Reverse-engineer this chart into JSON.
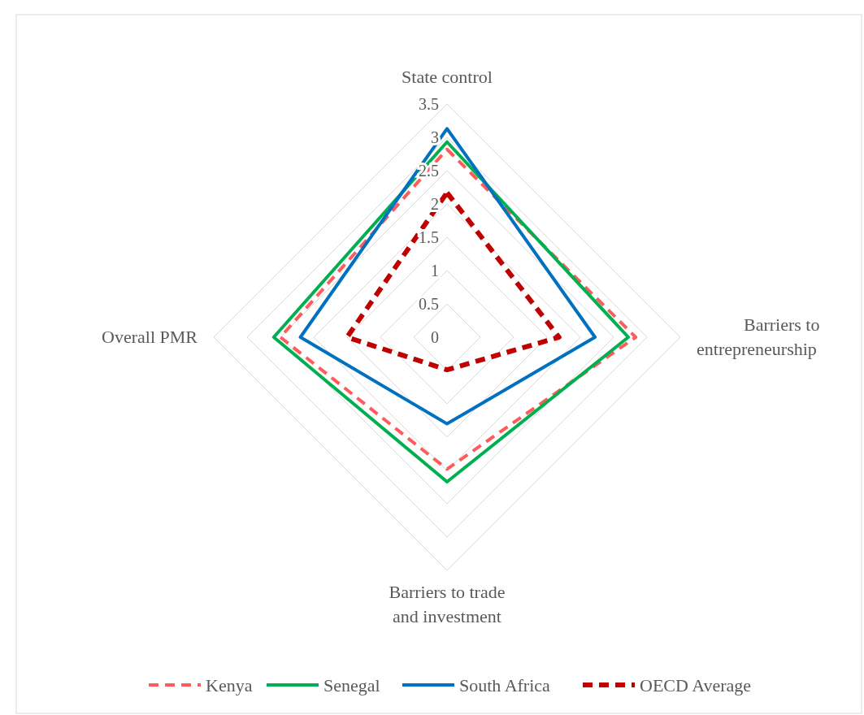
{
  "chart_data": {
    "type": "radar",
    "categories": [
      "State control",
      "Barriers to entrepreneurship",
      "Barriers to trade and investment",
      "Overall PMR"
    ],
    "ylim": [
      0,
      3.5
    ],
    "yticks": [
      0,
      0.5,
      1,
      1.5,
      2,
      2.5,
      3,
      3.5
    ],
    "grid": true,
    "legend": "bottom",
    "series": [
      {
        "name": "Kenya",
        "color": "#ff5b5b",
        "line_style": "dashed",
        "values": [
          2.82,
          2.83,
          1.98,
          2.5
        ]
      },
      {
        "name": "Senegal",
        "color": "#00b050",
        "line_style": "solid",
        "values": [
          2.93,
          2.72,
          2.17,
          2.6
        ]
      },
      {
        "name": "South Africa",
        "color": "#0070c0",
        "line_style": "solid",
        "values": [
          3.13,
          2.22,
          1.3,
          2.2
        ]
      },
      {
        "name": "OECD Average",
        "color": "#c00000",
        "line_style": "dashed",
        "values": [
          2.17,
          1.68,
          0.49,
          1.5
        ]
      }
    ]
  }
}
